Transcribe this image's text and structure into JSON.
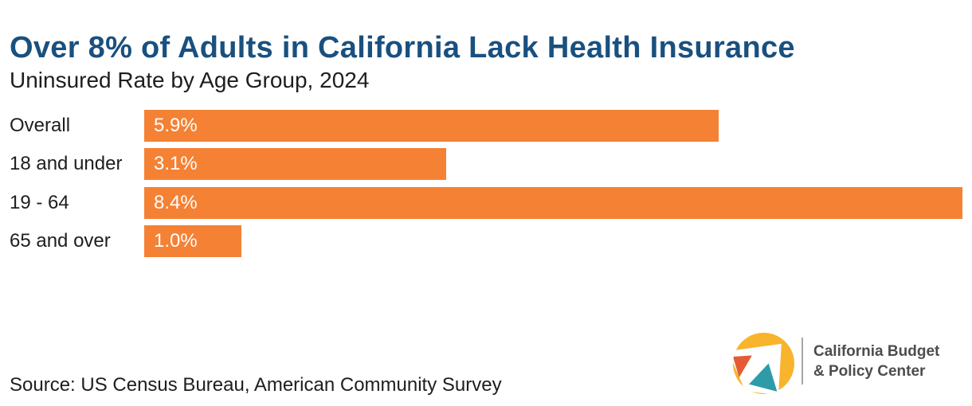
{
  "title": "Over 8% of Adults in California Lack Health Insurance",
  "subtitle": "Uninsured Rate by Age Group, 2024",
  "source": "Source: US Census Bureau, American Community Survey",
  "logo": {
    "line1": "California Budget",
    "line2": "& Policy Center"
  },
  "colors": {
    "accent_orange": "#F58134",
    "title_navy": "#19507F",
    "text_dark": "#1E1E1E",
    "value_white": "#FFFFFF",
    "logo_yellow": "#F8B42C",
    "logo_red_orange": "#E45C35",
    "logo_teal": "#2E9BA8",
    "logo_gray_text": "#4D4D4F",
    "divider_gray": "#A6A6A8"
  },
  "chart_data": {
    "type": "bar",
    "orientation": "horizontal",
    "title": "Over 8% of Adults in California Lack Health Insurance",
    "subtitle": "Uninsured Rate by Age Group, 2024",
    "categories": [
      "Overall",
      "18 and under",
      "19 - 64",
      "65 and over"
    ],
    "values": [
      5.9,
      3.1,
      8.4,
      1.0
    ],
    "value_labels": [
      "5.9%",
      "3.1%",
      "8.4%",
      "1.0%"
    ],
    "xlabel": "",
    "ylabel": "",
    "xlim": [
      0,
      8.5
    ],
    "grid": false,
    "legend": false,
    "bar_color": "#F58134",
    "value_label_position": "inside-left"
  }
}
